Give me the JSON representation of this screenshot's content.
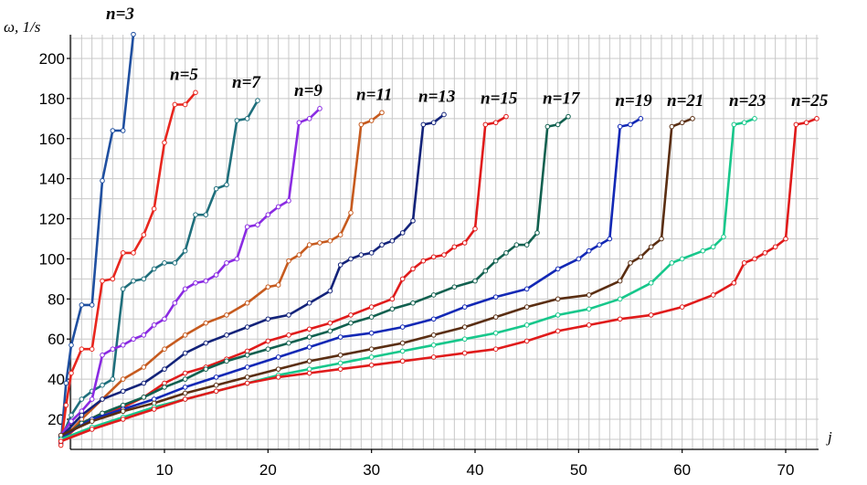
{
  "chart_data": {
    "type": "line",
    "title": "",
    "ylabel": "ω, 1/s",
    "xlabel": "j",
    "xlim": [
      0,
      73
    ],
    "ylim": [
      5,
      215
    ],
    "x_ticks": [
      10,
      20,
      30,
      40,
      50,
      60,
      70
    ],
    "y_ticks": [
      20,
      40,
      60,
      80,
      100,
      120,
      140,
      160,
      180,
      200
    ],
    "grid": true,
    "series": [
      {
        "name": "n=3",
        "color": "#1f4fa0",
        "points": [
          [
            0,
            8
          ],
          [
            0.5,
            38
          ],
          [
            1,
            57
          ],
          [
            2,
            77
          ],
          [
            3,
            77
          ],
          [
            4,
            139
          ],
          [
            5,
            164
          ],
          [
            6,
            164
          ],
          [
            7,
            212
          ]
        ]
      },
      {
        "name": "n=5",
        "color": "#e8261e",
        "points": [
          [
            0,
            7
          ],
          [
            0.5,
            27
          ],
          [
            1,
            43
          ],
          [
            2,
            55
          ],
          [
            3,
            55
          ],
          [
            4,
            89
          ],
          [
            5,
            90
          ],
          [
            6,
            103
          ],
          [
            7,
            103
          ],
          [
            8,
            112
          ],
          [
            9,
            125
          ],
          [
            10,
            158
          ],
          [
            11,
            177
          ],
          [
            12,
            177
          ],
          [
            13,
            183
          ]
        ]
      },
      {
        "name": "n=7",
        "color": "#1f6f7c",
        "points": [
          [
            0,
            10
          ],
          [
            1,
            22
          ],
          [
            2,
            30
          ],
          [
            3,
            34
          ],
          [
            4,
            37
          ],
          [
            5,
            40
          ],
          [
            6,
            85
          ],
          [
            7,
            89
          ],
          [
            8,
            90
          ],
          [
            9,
            95
          ],
          [
            10,
            98
          ],
          [
            11,
            98
          ],
          [
            12,
            104
          ],
          [
            13,
            122
          ],
          [
            14,
            122
          ],
          [
            15,
            135
          ],
          [
            16,
            137
          ],
          [
            17,
            169
          ],
          [
            18,
            170
          ],
          [
            19,
            179
          ]
        ]
      },
      {
        "name": "n=9",
        "color": "#8a2be2",
        "points": [
          [
            0,
            12
          ],
          [
            1,
            19
          ],
          [
            2,
            24
          ],
          [
            3,
            30
          ],
          [
            4,
            52
          ],
          [
            5,
            55
          ],
          [
            6,
            57
          ],
          [
            7,
            60
          ],
          [
            8,
            62
          ],
          [
            9,
            67
          ],
          [
            10,
            70
          ],
          [
            11,
            78
          ],
          [
            12,
            85
          ],
          [
            13,
            88
          ],
          [
            14,
            89
          ],
          [
            15,
            92
          ],
          [
            16,
            98
          ],
          [
            17,
            100
          ],
          [
            18,
            116
          ],
          [
            19,
            117
          ],
          [
            20,
            122
          ],
          [
            21,
            126
          ],
          [
            22,
            129
          ],
          [
            23,
            168
          ],
          [
            24,
            170
          ],
          [
            25,
            175
          ]
        ]
      },
      {
        "name": "n=11",
        "color": "#c65a1e",
        "points": [
          [
            0,
            9
          ],
          [
            2,
            20
          ],
          [
            4,
            30
          ],
          [
            6,
            40
          ],
          [
            8,
            46
          ],
          [
            10,
            55
          ],
          [
            12,
            62
          ],
          [
            14,
            68
          ],
          [
            16,
            72
          ],
          [
            18,
            78
          ],
          [
            20,
            86
          ],
          [
            21,
            87
          ],
          [
            22,
            99
          ],
          [
            23,
            102
          ],
          [
            24,
            107
          ],
          [
            25,
            108
          ],
          [
            26,
            109
          ],
          [
            27,
            112
          ],
          [
            28,
            123
          ],
          [
            29,
            167
          ],
          [
            30,
            169
          ],
          [
            31,
            173
          ]
        ]
      },
      {
        "name": "n=13",
        "color": "#13237a",
        "points": [
          [
            0,
            11
          ],
          [
            2,
            22
          ],
          [
            4,
            30
          ],
          [
            6,
            34
          ],
          [
            8,
            38
          ],
          [
            10,
            45
          ],
          [
            12,
            53
          ],
          [
            14,
            58
          ],
          [
            16,
            62
          ],
          [
            18,
            66
          ],
          [
            20,
            70
          ],
          [
            22,
            72
          ],
          [
            24,
            78
          ],
          [
            26,
            84
          ],
          [
            27,
            97
          ],
          [
            28,
            100
          ],
          [
            29,
            102
          ],
          [
            30,
            103
          ],
          [
            31,
            107
          ],
          [
            32,
            109
          ],
          [
            33,
            113
          ],
          [
            34,
            119
          ],
          [
            35,
            167
          ],
          [
            36,
            168
          ],
          [
            37,
            172
          ]
        ]
      },
      {
        "name": "n=15",
        "color": "#e01b1b",
        "points": [
          [
            0,
            9
          ],
          [
            2,
            18
          ],
          [
            4,
            23
          ],
          [
            6,
            26
          ],
          [
            8,
            31
          ],
          [
            10,
            38
          ],
          [
            12,
            43
          ],
          [
            14,
            46
          ],
          [
            16,
            50
          ],
          [
            18,
            54
          ],
          [
            20,
            59
          ],
          [
            22,
            62
          ],
          [
            24,
            65
          ],
          [
            26,
            68
          ],
          [
            28,
            72
          ],
          [
            30,
            76
          ],
          [
            32,
            80
          ],
          [
            33,
            90
          ],
          [
            34,
            95
          ],
          [
            35,
            99
          ],
          [
            36,
            101
          ],
          [
            37,
            102
          ],
          [
            38,
            106
          ],
          [
            39,
            108
          ],
          [
            40,
            115
          ],
          [
            41,
            167
          ],
          [
            42,
            168
          ],
          [
            43,
            171
          ]
        ]
      },
      {
        "name": "n=17",
        "color": "#11604f",
        "points": [
          [
            0,
            10
          ],
          [
            2,
            18
          ],
          [
            4,
            23
          ],
          [
            6,
            27
          ],
          [
            8,
            31
          ],
          [
            10,
            36
          ],
          [
            12,
            40
          ],
          [
            14,
            45
          ],
          [
            16,
            49
          ],
          [
            18,
            52
          ],
          [
            20,
            55
          ],
          [
            22,
            58
          ],
          [
            24,
            61
          ],
          [
            26,
            64
          ],
          [
            28,
            68
          ],
          [
            30,
            71
          ],
          [
            32,
            75
          ],
          [
            34,
            78
          ],
          [
            36,
            82
          ],
          [
            38,
            86
          ],
          [
            40,
            89
          ],
          [
            41,
            94
          ],
          [
            42,
            99
          ],
          [
            43,
            103
          ],
          [
            44,
            107
          ],
          [
            45,
            107
          ],
          [
            46,
            113
          ],
          [
            47,
            166
          ],
          [
            48,
            167
          ],
          [
            49,
            171
          ]
        ]
      },
      {
        "name": "n=19",
        "color": "#1228b5",
        "points": [
          [
            0,
            11
          ],
          [
            3,
            20
          ],
          [
            6,
            25
          ],
          [
            9,
            30
          ],
          [
            12,
            36
          ],
          [
            15,
            41
          ],
          [
            18,
            46
          ],
          [
            21,
            51
          ],
          [
            24,
            56
          ],
          [
            27,
            61
          ],
          [
            30,
            63
          ],
          [
            33,
            66
          ],
          [
            36,
            70
          ],
          [
            39,
            76
          ],
          [
            42,
            81
          ],
          [
            45,
            85
          ],
          [
            48,
            95
          ],
          [
            50,
            100
          ],
          [
            51,
            104
          ],
          [
            52,
            107
          ],
          [
            53,
            110
          ],
          [
            54,
            166
          ],
          [
            55,
            167
          ],
          [
            56,
            170
          ]
        ]
      },
      {
        "name": "n=21",
        "color": "#5a2e12",
        "points": [
          [
            0,
            12
          ],
          [
            3,
            19
          ],
          [
            6,
            24
          ],
          [
            9,
            28
          ],
          [
            12,
            33
          ],
          [
            15,
            37
          ],
          [
            18,
            41
          ],
          [
            21,
            45
          ],
          [
            24,
            49
          ],
          [
            27,
            52
          ],
          [
            30,
            55
          ],
          [
            33,
            58
          ],
          [
            36,
            62
          ],
          [
            39,
            66
          ],
          [
            42,
            71
          ],
          [
            45,
            76
          ],
          [
            48,
            80
          ],
          [
            51,
            82
          ],
          [
            54,
            89
          ],
          [
            55,
            98
          ],
          [
            56,
            101
          ],
          [
            57,
            106
          ],
          [
            58,
            110
          ],
          [
            59,
            166
          ],
          [
            60,
            168
          ],
          [
            61,
            170
          ]
        ]
      },
      {
        "name": "n=23",
        "color": "#17c78b",
        "points": [
          [
            0,
            10
          ],
          [
            3,
            16
          ],
          [
            6,
            21
          ],
          [
            9,
            26
          ],
          [
            12,
            30
          ],
          [
            15,
            34
          ],
          [
            18,
            38
          ],
          [
            21,
            42
          ],
          [
            24,
            45
          ],
          [
            27,
            48
          ],
          [
            30,
            51
          ],
          [
            33,
            54
          ],
          [
            36,
            57
          ],
          [
            39,
            60
          ],
          [
            42,
            63
          ],
          [
            45,
            67
          ],
          [
            48,
            72
          ],
          [
            51,
            75
          ],
          [
            54,
            80
          ],
          [
            57,
            88
          ],
          [
            59,
            98
          ],
          [
            60,
            100
          ],
          [
            62,
            104
          ],
          [
            63,
            106
          ],
          [
            64,
            111
          ],
          [
            65,
            167
          ],
          [
            66,
            168
          ],
          [
            67,
            170
          ]
        ]
      },
      {
        "name": "n=25",
        "color": "#e01b1b",
        "points": [
          [
            0,
            9
          ],
          [
            3,
            15
          ],
          [
            6,
            20
          ],
          [
            9,
            25
          ],
          [
            12,
            30
          ],
          [
            15,
            34
          ],
          [
            18,
            38
          ],
          [
            21,
            41
          ],
          [
            24,
            43
          ],
          [
            27,
            45
          ],
          [
            30,
            47
          ],
          [
            33,
            49
          ],
          [
            36,
            51
          ],
          [
            39,
            53
          ],
          [
            42,
            55
          ],
          [
            45,
            59
          ],
          [
            48,
            64
          ],
          [
            51,
            67
          ],
          [
            54,
            70
          ],
          [
            57,
            72
          ],
          [
            60,
            76
          ],
          [
            63,
            82
          ],
          [
            65,
            88
          ],
          [
            66,
            98
          ],
          [
            67,
            100
          ],
          [
            68,
            103
          ],
          [
            69,
            106
          ],
          [
            70,
            110
          ],
          [
            71,
            167
          ],
          [
            72,
            168
          ],
          [
            73,
            170
          ]
        ]
      }
    ]
  }
}
